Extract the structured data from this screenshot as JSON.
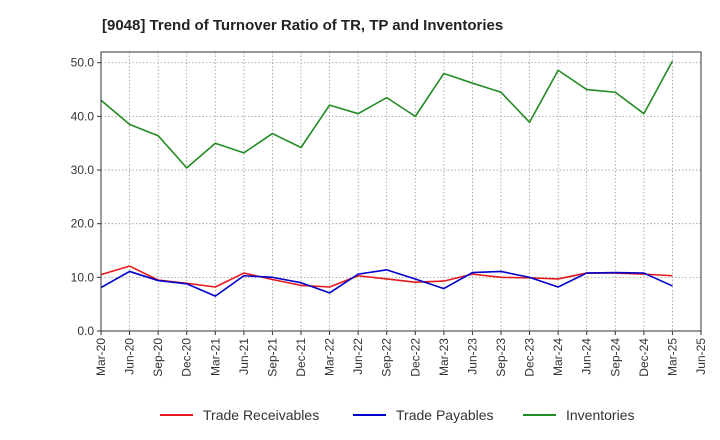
{
  "chart_data": {
    "type": "line",
    "title": "[9048]  Trend of Turnover Ratio of TR, TP and Inventories",
    "xlabel": "",
    "ylabel": "",
    "ylim": [
      0,
      52
    ],
    "yticks": [
      "0.0",
      "10.0",
      "20.0",
      "30.0",
      "40.0",
      "50.0"
    ],
    "ytick_values": [
      0,
      10,
      20,
      30,
      40,
      50
    ],
    "grid": true,
    "legend_position": "bottom",
    "categories": [
      "Mar-20",
      "Jun-20",
      "Sep-20",
      "Dec-20",
      "Mar-21",
      "Jun-21",
      "Sep-21",
      "Dec-21",
      "Mar-22",
      "Jun-22",
      "Sep-22",
      "Dec-22",
      "Mar-23",
      "Jun-23",
      "Sep-23",
      "Dec-23",
      "Mar-24",
      "Jun-24",
      "Sep-24",
      "Dec-24",
      "Mar-25",
      "Jun-25"
    ],
    "series": [
      {
        "name": "Trade Receivables",
        "color": "#e31a1c",
        "values": [
          10.5,
          12.1,
          9.5,
          8.9,
          8.2,
          10.8,
          9.6,
          8.5,
          8.2,
          10.3,
          9.7,
          9.1,
          9.3,
          10.6,
          10.0,
          9.9,
          9.7,
          10.8,
          10.8,
          10.6,
          10.3,
          null
        ]
      },
      {
        "name": "Trade Payables",
        "color": "#0000cc",
        "values": [
          8.1,
          11.1,
          9.4,
          8.8,
          6.5,
          10.3,
          10.0,
          9.0,
          7.1,
          10.6,
          11.4,
          9.7,
          7.9,
          10.9,
          11.1,
          10.0,
          8.2,
          10.8,
          10.9,
          10.8,
          8.4,
          null
        ]
      },
      {
        "name": "Inventories",
        "color": "#228b22",
        "values": [
          43.0,
          38.5,
          36.4,
          30.4,
          35.0,
          33.2,
          36.8,
          34.2,
          42.1,
          40.5,
          43.5,
          40.0,
          48.0,
          46.2,
          44.5,
          38.9,
          48.6,
          45.0,
          44.5,
          40.5,
          50.3,
          null
        ]
      }
    ]
  }
}
